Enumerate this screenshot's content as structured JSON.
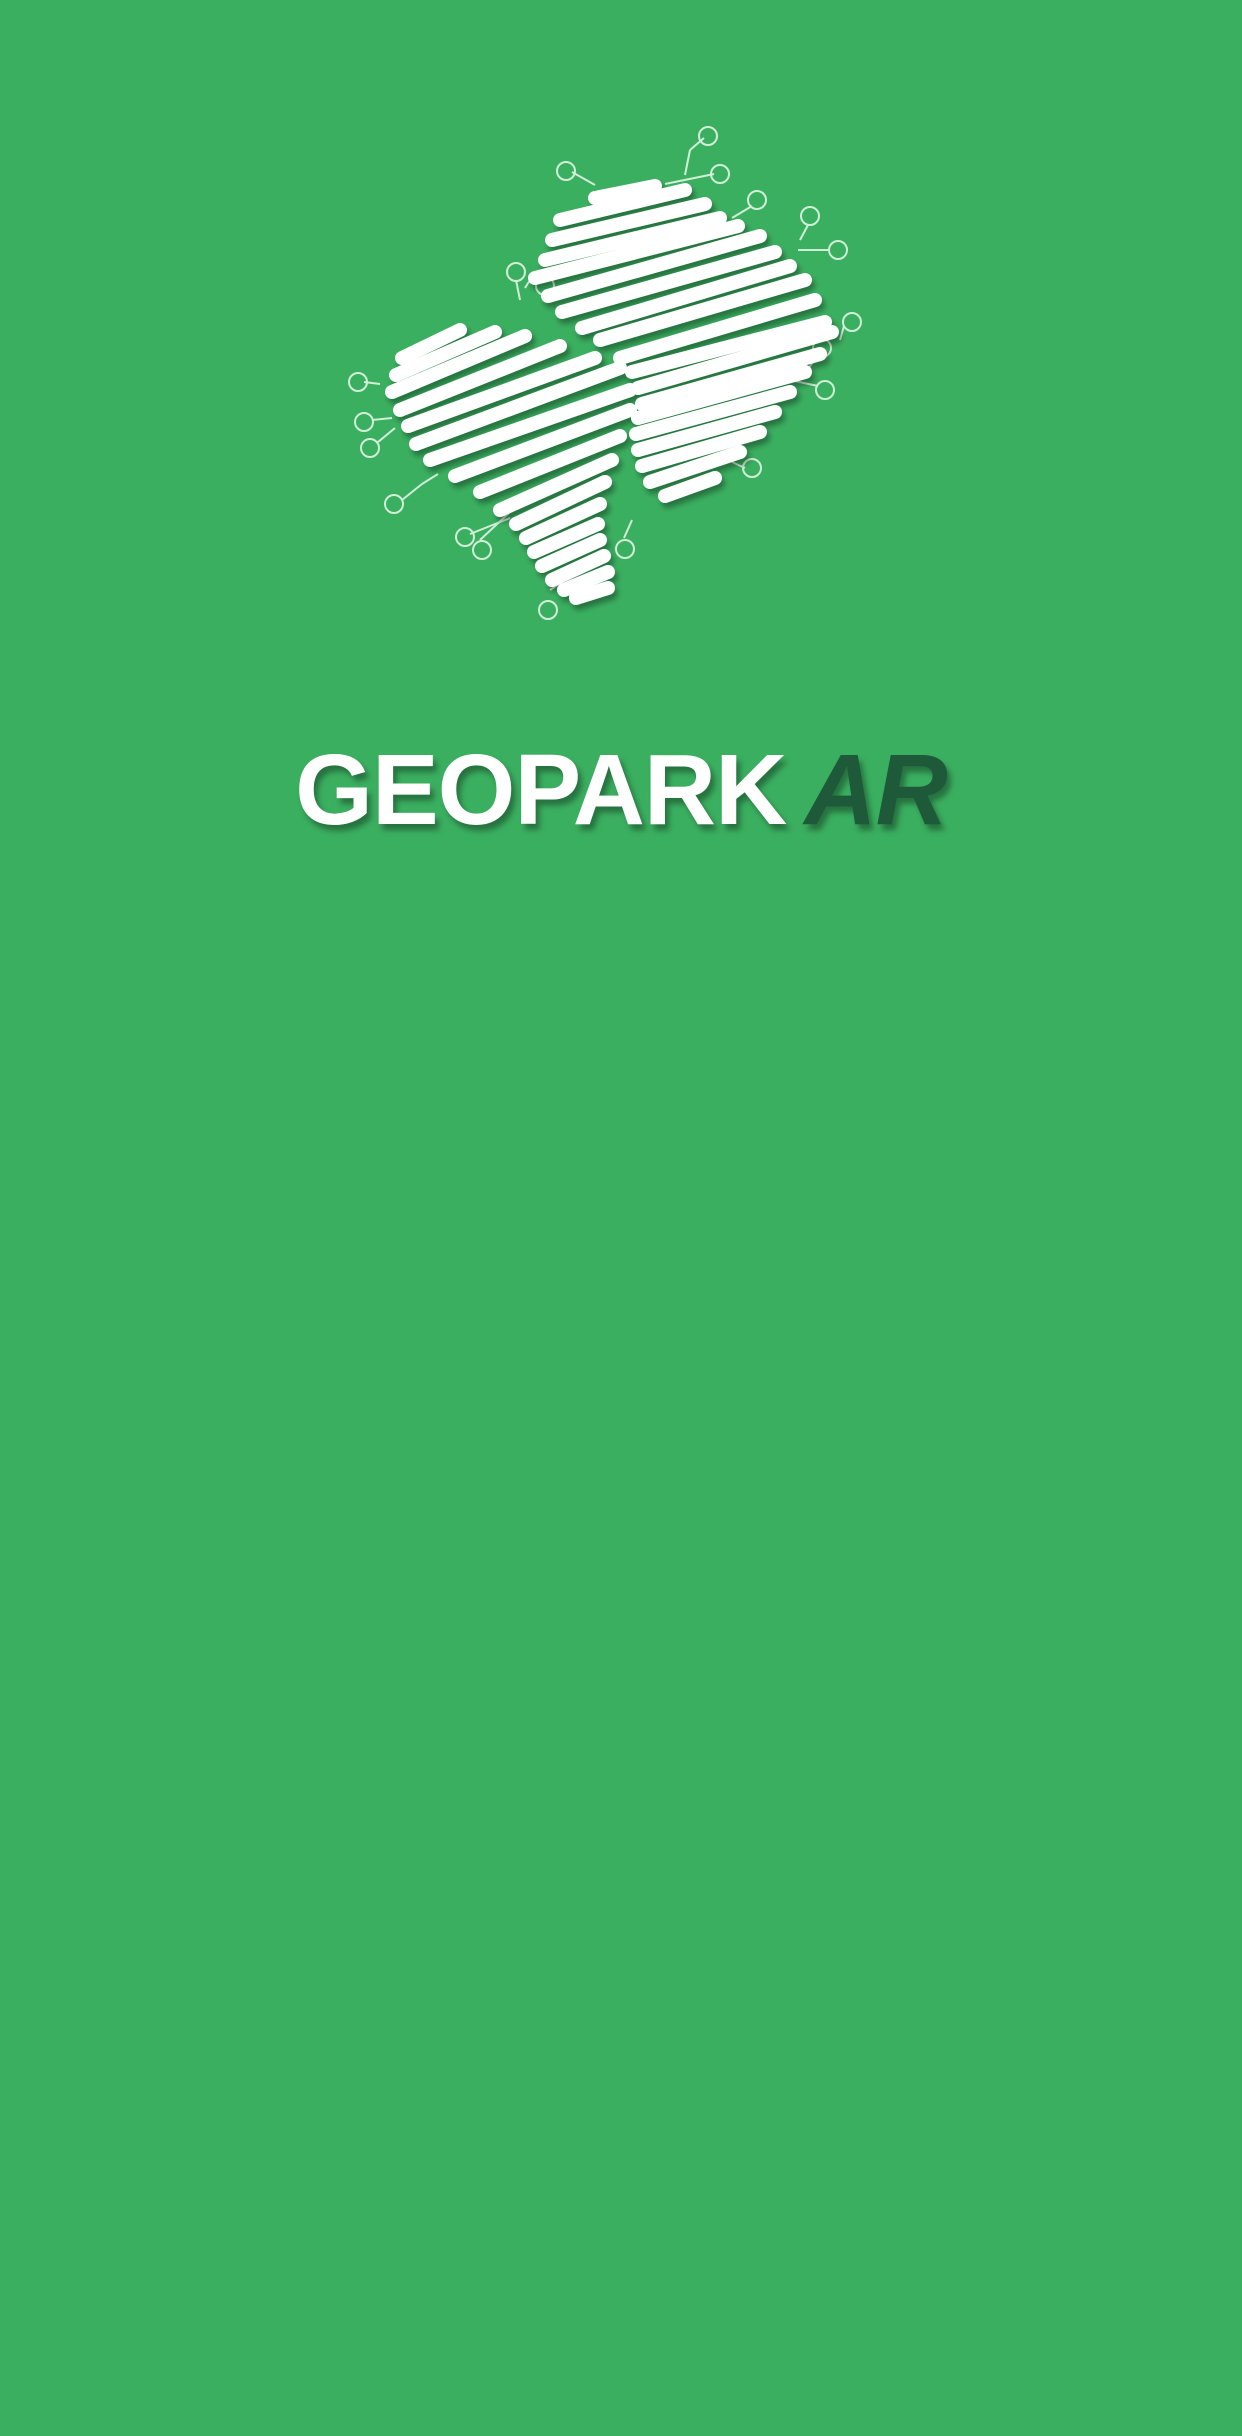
{
  "app": {
    "title_main": "GEOPARK",
    "title_accent": "AR"
  },
  "icons": {
    "logo": "geopark-scribble-logo-icon"
  },
  "colors": {
    "background": "#3BAF60",
    "title_main": "#FFFFFF",
    "title_accent": "#1E5A3A"
  }
}
